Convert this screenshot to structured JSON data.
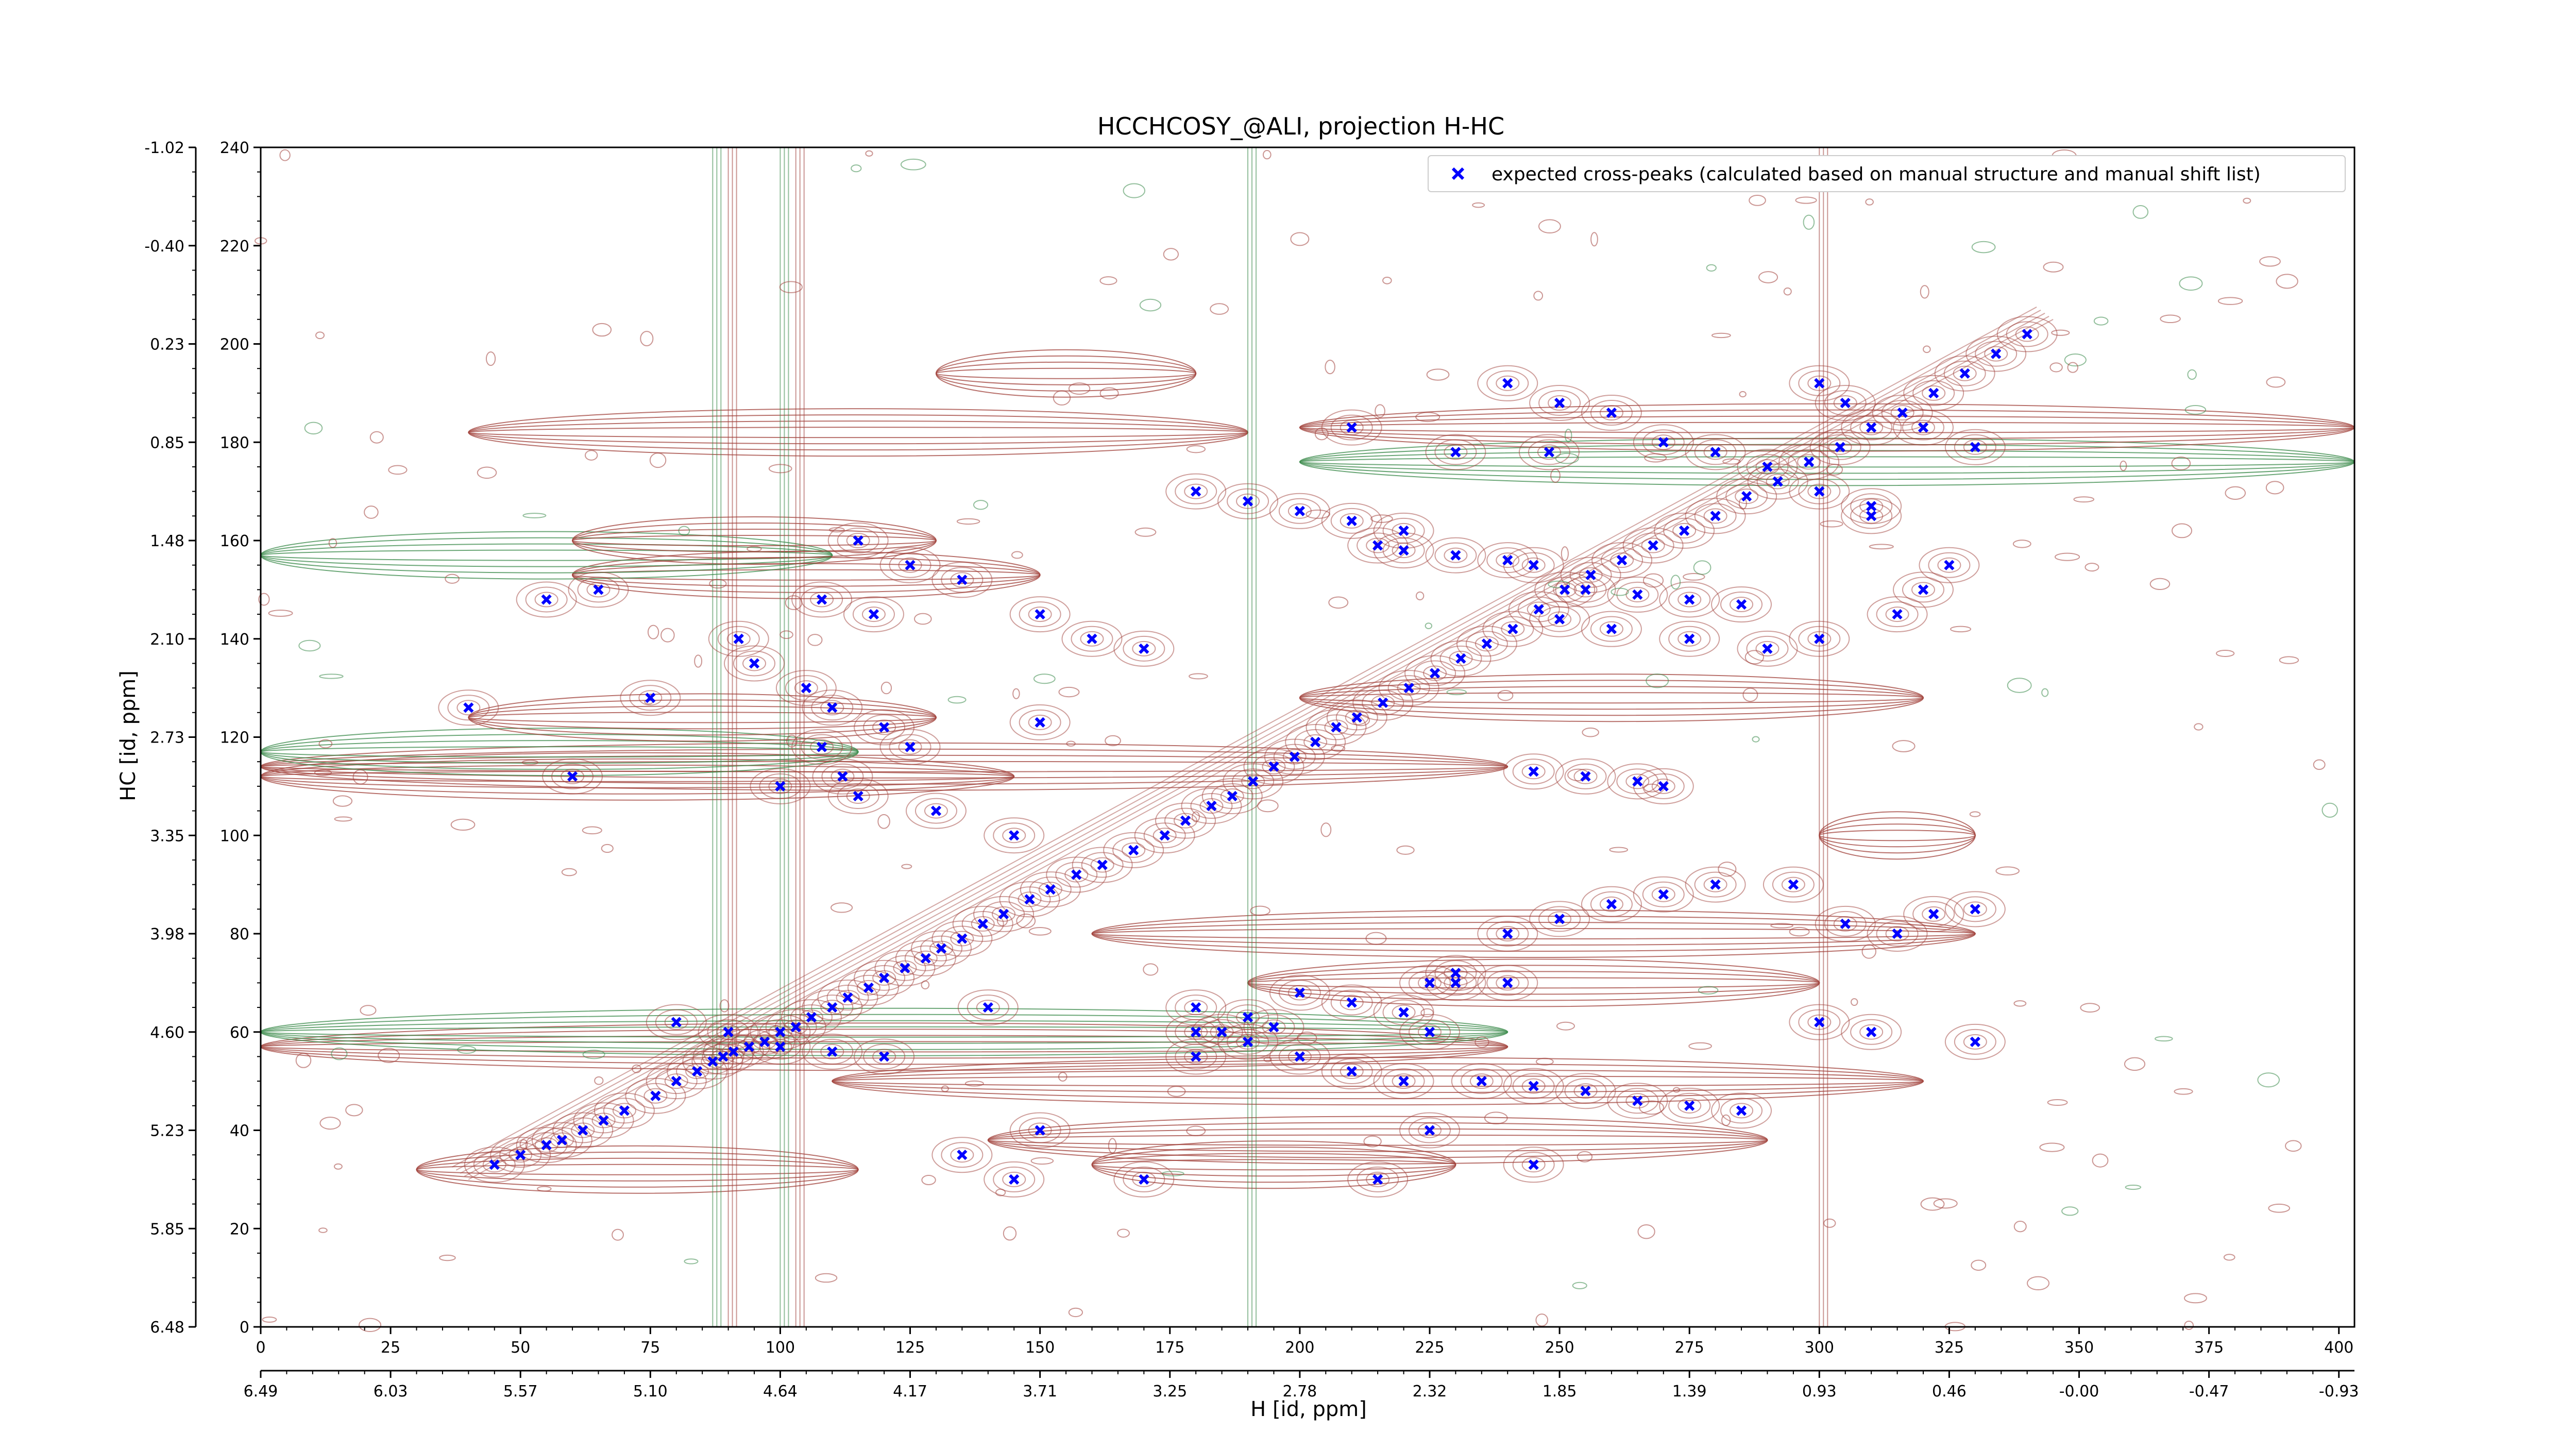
{
  "chart_data": {
    "type": "scatter",
    "title": "HCCHCOSY_@ALI, projection H-HC",
    "xlabel": "H [id, ppm]",
    "ylabel": "HC [id, ppm]",
    "xlim": [
      0,
      403
    ],
    "ylim": [
      0,
      240
    ],
    "x_ticks": [
      0,
      25,
      50,
      75,
      100,
      125,
      150,
      175,
      200,
      225,
      250,
      275,
      300,
      325,
      350,
      375,
      400
    ],
    "y_ticks": [
      0,
      20,
      40,
      60,
      80,
      100,
      120,
      140,
      160,
      180,
      200,
      220,
      240
    ],
    "x_ppm_tick_labels": [
      "6.49",
      "6.03",
      "5.57",
      "5.10",
      "4.64",
      "4.17",
      "3.71",
      "3.25",
      "2.78",
      "2.32",
      "1.85",
      "1.39",
      "0.93",
      "0.46",
      "-0.00",
      "-0.47",
      "-0.93"
    ],
    "y_ppm_tick_labels": [
      "6.48",
      "5.85",
      "5.23",
      "4.60",
      "3.98",
      "3.35",
      "2.73",
      "2.10",
      "1.48",
      "0.85",
      "0.23",
      "-0.40",
      "-1.02"
    ],
    "legend": {
      "position": "top-right",
      "entries": [
        "expected cross-peaks (calculated based on manual structure and manual shift list)"
      ]
    },
    "background": "spectrum contour map (positive contours dark red, negative contours green)",
    "colors": {
      "marker": "#0000ff",
      "contour_positive": "#a0403a",
      "contour_negative": "#3a8a4a"
    },
    "series": [
      {
        "name": "expected cross-peaks (calculated based on manual structure and manual shift list)",
        "marker": "x",
        "x": [
          45,
          50,
          55,
          58,
          62,
          66,
          70,
          76,
          80,
          84,
          87,
          89,
          91,
          94,
          97,
          100,
          103,
          106,
          110,
          113,
          117,
          120,
          124,
          128,
          131,
          135,
          139,
          143,
          148,
          152,
          157,
          162,
          168,
          174,
          178,
          183,
          187,
          191,
          195,
          199,
          203,
          207,
          211,
          216,
          221,
          226,
          231,
          236,
          241,
          246,
          251,
          256,
          262,
          268,
          274,
          280,
          286,
          292,
          298,
          304,
          310,
          316,
          322,
          328,
          334,
          340,
          60,
          100,
          115,
          130,
          145,
          110,
          120,
          125,
          105,
          95,
          40,
          75,
          55,
          65,
          92,
          108,
          118,
          150,
          160,
          170,
          115,
          125,
          135,
          108,
          112,
          150,
          210,
          230,
          240,
          250,
          260,
          270,
          280,
          290,
          300,
          310,
          320,
          330,
          245,
          255,
          265,
          275,
          285,
          215,
          220,
          230,
          240,
          180,
          190,
          200,
          210,
          220,
          248,
          300,
          305,
          310,
          250,
          260,
          275,
          290,
          300,
          315,
          320,
          325,
          245,
          255,
          265,
          270,
          240,
          250,
          260,
          270,
          280,
          295,
          305,
          315,
          322,
          330,
          80,
          90,
          100,
          110,
          120,
          180,
          190,
          200,
          210,
          220,
          300,
          310,
          330,
          235,
          245,
          255,
          265,
          275,
          285,
          225,
          230,
          200,
          210,
          220,
          230,
          240,
          180,
          190,
          195,
          150,
          135,
          145,
          225,
          245,
          170,
          215,
          180,
          185,
          140,
          225
        ],
        "y": [
          33,
          35,
          37,
          38,
          40,
          42,
          44,
          47,
          50,
          52,
          54,
          55,
          56,
          57,
          58,
          60,
          61,
          63,
          65,
          67,
          69,
          71,
          73,
          75,
          77,
          79,
          82,
          84,
          87,
          89,
          92,
          94,
          97,
          100,
          103,
          106,
          108,
          111,
          114,
          116,
          119,
          122,
          124,
          127,
          130,
          133,
          136,
          139,
          142,
          146,
          150,
          153,
          156,
          159,
          162,
          165,
          169,
          172,
          176,
          179,
          183,
          186,
          190,
          194,
          198,
          202,
          112,
          110,
          108,
          105,
          100,
          126,
          122,
          118,
          130,
          135,
          126,
          128,
          148,
          150,
          140,
          148,
          145,
          145,
          140,
          138,
          160,
          155,
          152,
          118,
          112,
          123,
          183,
          178,
          192,
          188,
          186,
          180,
          178,
          175,
          170,
          167,
          183,
          179,
          155,
          150,
          149,
          148,
          147,
          159,
          158,
          157,
          156,
          170,
          168,
          166,
          164,
          162,
          178,
          192,
          188,
          165,
          144,
          142,
          140,
          138,
          140,
          145,
          150,
          155,
          113,
          112,
          111,
          110,
          80,
          83,
          86,
          88,
          90,
          90,
          82,
          80,
          84,
          85,
          62,
          60,
          57,
          56,
          55,
          60,
          58,
          55,
          52,
          50,
          62,
          60,
          58,
          50,
          49,
          48,
          46,
          45,
          44,
          70,
          72,
          68,
          66,
          64,
          70,
          70,
          65,
          63,
          61,
          40,
          35,
          30,
          40,
          33,
          30,
          30,
          55,
          60,
          65,
          60
        ]
      }
    ]
  }
}
